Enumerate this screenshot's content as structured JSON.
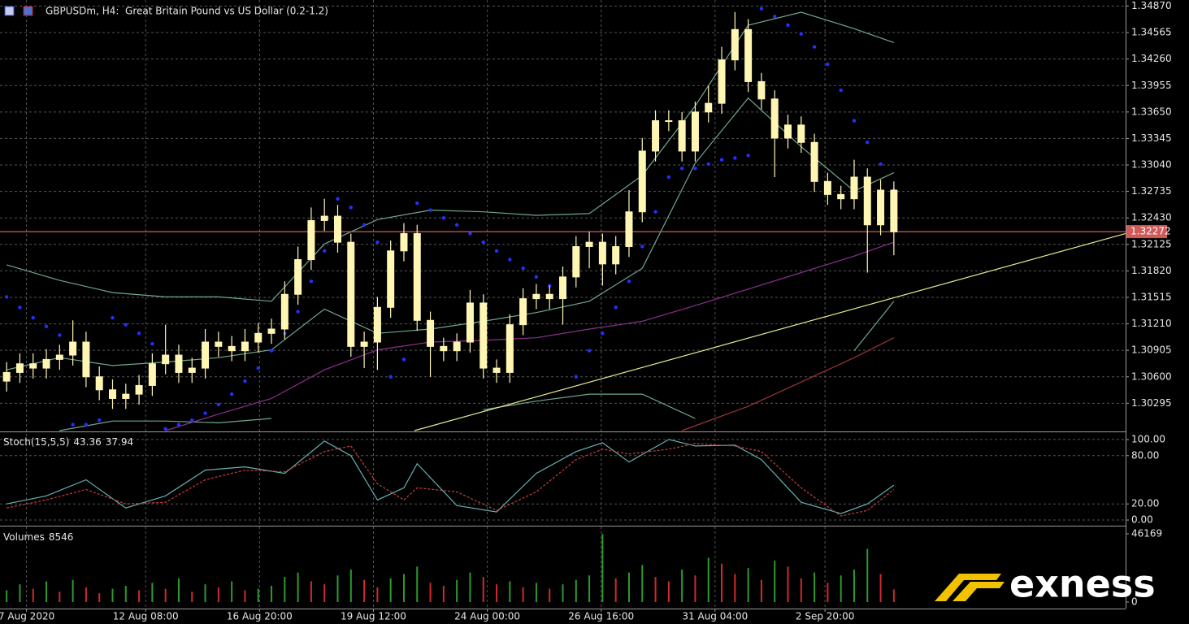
{
  "window_title": "GBPUSDm, H4:  Great Britain Pound vs US Dollar (0.2-1.2)",
  "watermark": "exness",
  "chart_data": [
    {
      "type": "candlestick",
      "x": [
        0,
        1,
        2,
        3,
        4,
        5,
        6,
        7,
        8,
        9,
        10,
        11,
        12,
        13,
        14,
        15,
        16,
        17,
        18,
        19,
        20,
        21,
        22,
        23,
        24,
        25,
        26,
        27,
        28,
        29,
        30,
        31,
        32,
        33,
        34,
        35,
        36,
        37,
        38,
        39,
        40,
        41,
        42,
        43,
        44,
        45,
        46,
        47,
        48,
        49,
        50,
        51,
        52,
        53,
        54,
        55,
        56,
        57,
        58,
        59,
        60,
        61,
        62,
        63,
        64,
        65,
        66,
        67
      ],
      "open": [
        1.3055,
        1.3065,
        1.3075,
        1.307,
        1.308,
        1.3085,
        1.31,
        1.306,
        1.3045,
        1.3035,
        1.304,
        1.305,
        1.3075,
        1.3085,
        1.3065,
        1.307,
        1.31,
        1.3095,
        1.309,
        1.31,
        1.311,
        1.3115,
        1.3155,
        1.3195,
        1.324,
        1.3245,
        1.3215,
        1.3095,
        1.31,
        1.314,
        1.3205,
        1.3225,
        1.3125,
        1.3095,
        1.309,
        1.31,
        1.3145,
        1.307,
        1.3065,
        1.312,
        1.315,
        1.3155,
        1.315,
        1.3175,
        1.321,
        1.3215,
        1.319,
        1.321,
        1.325,
        1.332,
        1.3355,
        1.3355,
        1.332,
        1.3365,
        1.3375,
        1.3425,
        1.346,
        1.34,
        1.338,
        1.3335,
        1.335,
        1.333,
        1.3285,
        1.327,
        1.3265,
        1.329,
        1.3235,
        1.3275
      ],
      "high": [
        1.3077,
        1.3087,
        1.3087,
        1.3092,
        1.3097,
        1.3125,
        1.3112,
        1.3072,
        1.3057,
        1.3052,
        1.3062,
        1.3087,
        1.312,
        1.3097,
        1.3082,
        1.3115,
        1.3112,
        1.3107,
        1.3115,
        1.3122,
        1.3127,
        1.317,
        1.321,
        1.3255,
        1.3265,
        1.3258,
        1.3225,
        1.3112,
        1.3152,
        1.3217,
        1.3237,
        1.3235,
        1.3135,
        1.3105,
        1.311,
        1.316,
        1.3155,
        1.308,
        1.3132,
        1.3162,
        1.3167,
        1.3165,
        1.3187,
        1.3222,
        1.3227,
        1.3225,
        1.3222,
        1.3275,
        1.3335,
        1.3367,
        1.3367,
        1.3365,
        1.3377,
        1.3395,
        1.344,
        1.348,
        1.3472,
        1.341,
        1.339,
        1.3362,
        1.336,
        1.334,
        1.3295,
        1.328,
        1.331,
        1.33,
        1.3287,
        1.3285
      ],
      "low": [
        1.3043,
        1.3053,
        1.3058,
        1.3058,
        1.3068,
        1.3073,
        1.3048,
        1.3033,
        1.3023,
        1.3023,
        1.3028,
        1.3038,
        1.3063,
        1.3053,
        1.3053,
        1.3058,
        1.3083,
        1.3078,
        1.3078,
        1.3088,
        1.3098,
        1.3103,
        1.3143,
        1.3183,
        1.3228,
        1.3203,
        1.3083,
        1.307,
        1.3068,
        1.3128,
        1.3193,
        1.3113,
        1.306,
        1.3078,
        1.3078,
        1.3088,
        1.3058,
        1.3053,
        1.3053,
        1.3108,
        1.3138,
        1.3138,
        1.312,
        1.3163,
        1.3185,
        1.3165,
        1.3178,
        1.3198,
        1.3238,
        1.3308,
        1.3343,
        1.3308,
        1.3308,
        1.3353,
        1.3363,
        1.3413,
        1.3388,
        1.3368,
        1.329,
        1.3323,
        1.3318,
        1.3273,
        1.3258,
        1.3253,
        1.3253,
        1.318,
        1.3223,
        1.32
      ],
      "close": [
        1.3065,
        1.3075,
        1.307,
        1.308,
        1.3085,
        1.31,
        1.306,
        1.3045,
        1.3035,
        1.304,
        1.305,
        1.3075,
        1.3085,
        1.3065,
        1.307,
        1.31,
        1.3095,
        1.309,
        1.31,
        1.311,
        1.3115,
        1.3155,
        1.3195,
        1.324,
        1.3245,
        1.3215,
        1.3095,
        1.31,
        1.314,
        1.3205,
        1.3225,
        1.3125,
        1.3095,
        1.309,
        1.31,
        1.3145,
        1.307,
        1.3065,
        1.312,
        1.315,
        1.3155,
        1.315,
        1.3175,
        1.321,
        1.3215,
        1.319,
        1.321,
        1.325,
        1.332,
        1.3355,
        1.3355,
        1.332,
        1.3365,
        1.3375,
        1.3425,
        1.346,
        1.34,
        1.338,
        1.3335,
        1.335,
        1.333,
        1.3285,
        1.327,
        1.3265,
        1.329,
        1.3235,
        1.3275,
        1.3227
      ],
      "color": "#fff6b4",
      "xlim": [
        -0.5,
        84.5
      ],
      "ylim": [
        1.2998,
        1.3494
      ],
      "yticks": [
        {
          "value": 1.3487,
          "label": "1.34870"
        },
        1.34565,
        {
          "value": 1.3426,
          "label": "1.34260"
        },
        1.33955,
        {
          "value": 1.3365,
          "label": "1.33650"
        },
        1.33345,
        {
          "value": 1.3304,
          "label": "1.33040"
        },
        1.32735,
        {
          "value": 1.3243,
          "label": "1.32430"
        },
        1.32125,
        {
          "value": 1.3182,
          "label": "1.31820"
        },
        1.31515,
        {
          "value": 1.3121,
          "label": "1.31210"
        },
        1.30905,
        {
          "value": 1.306,
          "label": "1.30600"
        },
        1.30295
      ],
      "xticks": [
        {
          "value": 1.5,
          "label": "7 Aug 2020"
        },
        {
          "value": 10.5,
          "label": "12 Aug 08:00"
        },
        {
          "value": 19.1,
          "label": "16 Aug 20:00"
        },
        {
          "value": 27.7,
          "label": "19 Aug 12:00"
        },
        {
          "value": 36.3,
          "label": "24 Aug 00:00"
        },
        {
          "value": 44.9,
          "label": "26 Aug 16:00"
        },
        {
          "value": 53.5,
          "label": "31 Aug 04:00"
        },
        {
          "value": 61.8,
          "label": "2 Sep 20:00"
        }
      ],
      "grid": true,
      "overlays": [
        {
          "type": "line",
          "color": "#6fa88a",
          "x": [
            0,
            4,
            8,
            12,
            16,
            20,
            24,
            28,
            32,
            36,
            40,
            44,
            48,
            52,
            56,
            60,
            64,
            67
          ],
          "values": [
            1.3189,
            1.3171,
            1.3157,
            1.3152,
            1.3152,
            1.3147,
            1.3213,
            1.3241,
            1.3252,
            1.325,
            1.3246,
            1.3248,
            1.3292,
            1.3372,
            1.3465,
            1.348,
            1.3461,
            1.3445
          ]
        },
        {
          "type": "line",
          "color": "#6fa88a",
          "x": [
            0,
            4,
            8,
            12,
            16,
            20,
            24,
            28,
            32,
            36,
            40,
            44,
            48,
            52,
            56,
            60,
            64,
            67
          ],
          "values": [
            1.3068,
            1.3082,
            1.3073,
            1.3077,
            1.3082,
            1.3091,
            1.3138,
            1.311,
            1.3115,
            1.3124,
            1.3134,
            1.3147,
            1.3185,
            1.3306,
            1.3381,
            1.3325,
            1.3274,
            1.3295
          ]
        },
        {
          "type": "line",
          "color": "#6fa88a",
          "x": [
            0,
            4,
            8,
            12,
            16,
            20,
            24,
            28,
            32,
            36,
            40,
            44,
            48,
            52,
            56,
            60,
            64,
            67
          ],
          "values": [
            null,
            1.2998,
            1.3009,
            1.3009,
            1.3007,
            1.3012,
            null,
            null,
            null,
            1.3022,
            1.3032,
            1.304,
            1.304,
            1.3012,
            null,
            null,
            1.309,
            1.3147
          ]
        },
        {
          "type": "line",
          "color": "#8e2f8e",
          "x": [
            12,
            16,
            20,
            24,
            28,
            32,
            36,
            40,
            44,
            48,
            52,
            56,
            60,
            64,
            67
          ],
          "values": [
            1.2998,
            1.3017,
            1.3035,
            1.3068,
            1.3091,
            1.31,
            1.3102,
            1.3105,
            1.3115,
            1.3124,
            1.3142,
            1.3161,
            1.318,
            1.3199,
            1.3215
          ]
        },
        {
          "type": "line",
          "color": "#9a3434",
          "x": [
            51,
            56,
            60,
            64,
            67
          ],
          "values": [
            1.2998,
            1.3026,
            1.3054,
            1.3082,
            1.3105
          ]
        },
        {
          "type": "line",
          "color": "#e8e88e",
          "x": [
            30.8,
            84.5
          ],
          "values": [
            1.2998,
            1.3225
          ]
        },
        {
          "type": "scatter",
          "color": "#2430ff",
          "x": [
            0,
            1,
            2,
            3,
            4,
            5,
            6,
            7,
            8,
            9,
            10,
            11,
            12,
            13,
            14,
            15,
            16,
            17,
            18,
            19,
            20,
            21,
            22,
            23,
            24,
            25,
            26,
            27,
            28,
            29,
            30,
            31,
            32,
            33,
            34,
            35,
            36,
            37,
            38,
            39,
            40,
            41,
            42,
            43,
            44,
            45,
            46,
            47,
            48,
            49,
            50,
            51,
            52,
            53,
            54,
            55,
            56,
            57,
            58,
            59,
            60,
            61,
            62,
            63,
            64,
            65,
            66,
            67
          ],
          "values": [
            1.3152,
            1.314,
            1.3128,
            1.3118,
            1.3108,
            1.3005,
            1.3005,
            1.301,
            1.3128,
            1.312,
            1.311,
            1.3098,
            1.3,
            1.3005,
            1.301,
            1.3018,
            1.3028,
            1.304,
            1.3055,
            1.307,
            1.309,
            1.311,
            1.3135,
            1.317,
            1.3205,
            1.3265,
            1.3255,
            1.3235,
            1.3215,
            1.306,
            1.308,
            1.326,
            1.3252,
            1.3243,
            1.3235,
            1.3225,
            1.3215,
            1.3205,
            1.3195,
            1.3185,
            1.3175,
            1.3165,
            1.3155,
            1.306,
            1.309,
            1.311,
            1.314,
            1.317,
            1.321,
            1.325,
            1.329,
            1.33,
            1.33,
            1.3305,
            1.331,
            1.3312,
            1.3315,
            1.3484,
            1.3475,
            1.3465,
            1.3455,
            1.344,
            1.342,
            1.339,
            1.3355,
            1.333,
            1.3305,
            1.3275
          ]
        },
        {
          "type": "hline",
          "color": "#d05a5a",
          "value": 1.32272
        }
      ]
    },
    {
      "type": "line",
      "title": "Stoch(15,5,5)",
      "x": [
        0,
        3,
        6,
        9,
        12,
        15,
        18,
        21,
        24,
        26,
        28,
        30,
        31,
        34,
        37,
        40,
        43,
        45,
        47,
        50,
        52,
        55,
        57,
        60,
        63,
        65,
        67
      ],
      "series": [
        {
          "color": "#66b0b0",
          "values": [
            20,
            30,
            50,
            15,
            30,
            62,
            66,
            58,
            98,
            80,
            25,
            40,
            70,
            18,
            10,
            58,
            85,
            96,
            72,
            100,
            92,
            93,
            75,
            22,
            8,
            20,
            43.36
          ]
        },
        {
          "color": "#c83c3c",
          "dashed": true,
          "values": [
            15,
            25,
            38,
            20,
            22,
            50,
            62,
            60,
            85,
            92,
            45,
            25,
            40,
            35,
            12,
            35,
            75,
            88,
            82,
            88,
            95,
            92,
            85,
            40,
            5,
            12,
            37.94
          ]
        }
      ],
      "xlim": [
        -0.5,
        84.5
      ],
      "ylim": [
        -5,
        108
      ],
      "yticks": [
        {
          "value": 100,
          "label": "100.00"
        },
        {
          "value": 80,
          "label": "80.00"
        },
        {
          "value": 20,
          "label": "20.00"
        },
        {
          "value": 0,
          "label": "0.00"
        }
      ],
      "grid": true
    },
    {
      "type": "bar",
      "title": "Volumes",
      "x": [
        0,
        1,
        2,
        3,
        4,
        5,
        6,
        7,
        8,
        9,
        10,
        11,
        12,
        13,
        14,
        15,
        16,
        17,
        18,
        19,
        20,
        21,
        22,
        23,
        24,
        25,
        26,
        27,
        28,
        29,
        30,
        31,
        32,
        33,
        34,
        35,
        36,
        37,
        38,
        39,
        40,
        41,
        42,
        43,
        44,
        45,
        46,
        47,
        48,
        49,
        50,
        51,
        52,
        53,
        54,
        55,
        56,
        57,
        58,
        59,
        60,
        61,
        62,
        63,
        64,
        65,
        66,
        67
      ],
      "values": [
        8000,
        12000,
        9000,
        14000,
        7000,
        15000,
        10000,
        6000,
        9000,
        11000,
        8000,
        13000,
        9000,
        16000,
        7000,
        12000,
        10000,
        14000,
        8000,
        9000,
        11000,
        17000,
        20000,
        14000,
        12000,
        18000,
        22000,
        15000,
        10000,
        16000,
        19000,
        24000,
        13000,
        11000,
        15000,
        20000,
        17000,
        12000,
        14000,
        10000,
        13000,
        9000,
        12000,
        15000,
        18000,
        46000,
        16000,
        20000,
        25000,
        17000,
        14000,
        22000,
        18000,
        30000,
        26000,
        19000,
        23000,
        15000,
        28000,
        24000,
        16000,
        20000,
        13000,
        18000,
        22000,
        36000,
        19000,
        8546
      ],
      "up_color": "#2e9a2e",
      "down_color": "#d02a2a",
      "xlim": [
        -0.5,
        84.5
      ],
      "ylim": [
        0,
        50000
      ],
      "yticks": [
        46169,
        0
      ]
    }
  ]
}
